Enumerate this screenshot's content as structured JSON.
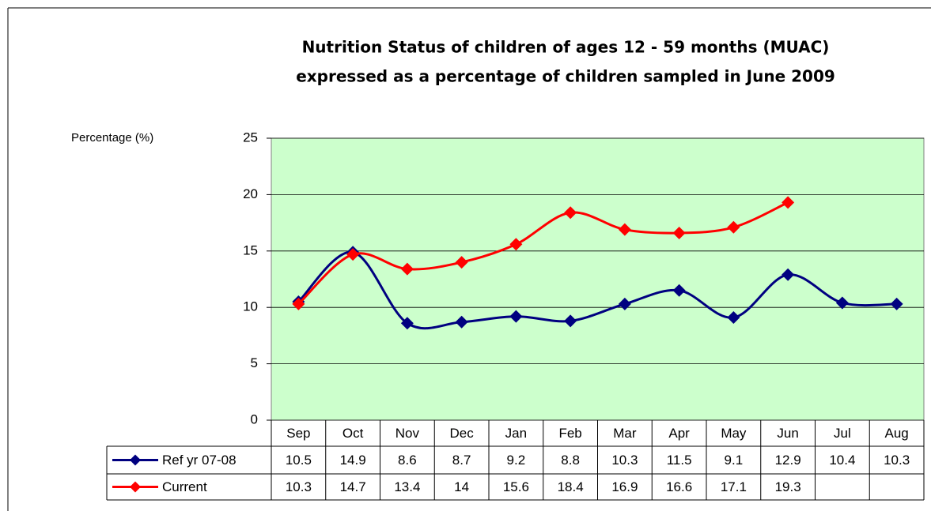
{
  "chart_data": {
    "type": "line",
    "title": [
      "Nutrition Status of children of ages 12 - 59 months (MUAC)",
      "expressed as a percentage of children sampled in June 2009"
    ],
    "y_label": "Percentage (%)",
    "categories": [
      "Sep",
      "Oct",
      "Nov",
      "Dec",
      "Jan",
      "Feb",
      "Mar",
      "Apr",
      "May",
      "Jun",
      "Jul",
      "Aug"
    ],
    "series": [
      {
        "name": "Ref yr 07-08",
        "color": "#000080",
        "values": [
          10.5,
          14.9,
          8.6,
          8.7,
          9.2,
          8.8,
          10.3,
          11.5,
          9.1,
          12.9,
          10.4,
          10.3
        ]
      },
      {
        "name": "Current",
        "color": "#ff0000",
        "values": [
          10.3,
          14.7,
          13.4,
          14,
          15.6,
          18.4,
          16.9,
          16.6,
          17.1,
          19.3,
          null,
          null
        ]
      }
    ],
    "ylim": [
      0,
      25
    ],
    "yticks": [
      0,
      5,
      10,
      15,
      20,
      25
    ],
    "grid": true,
    "plot_background": "#ccffcc",
    "smooth": true
  }
}
